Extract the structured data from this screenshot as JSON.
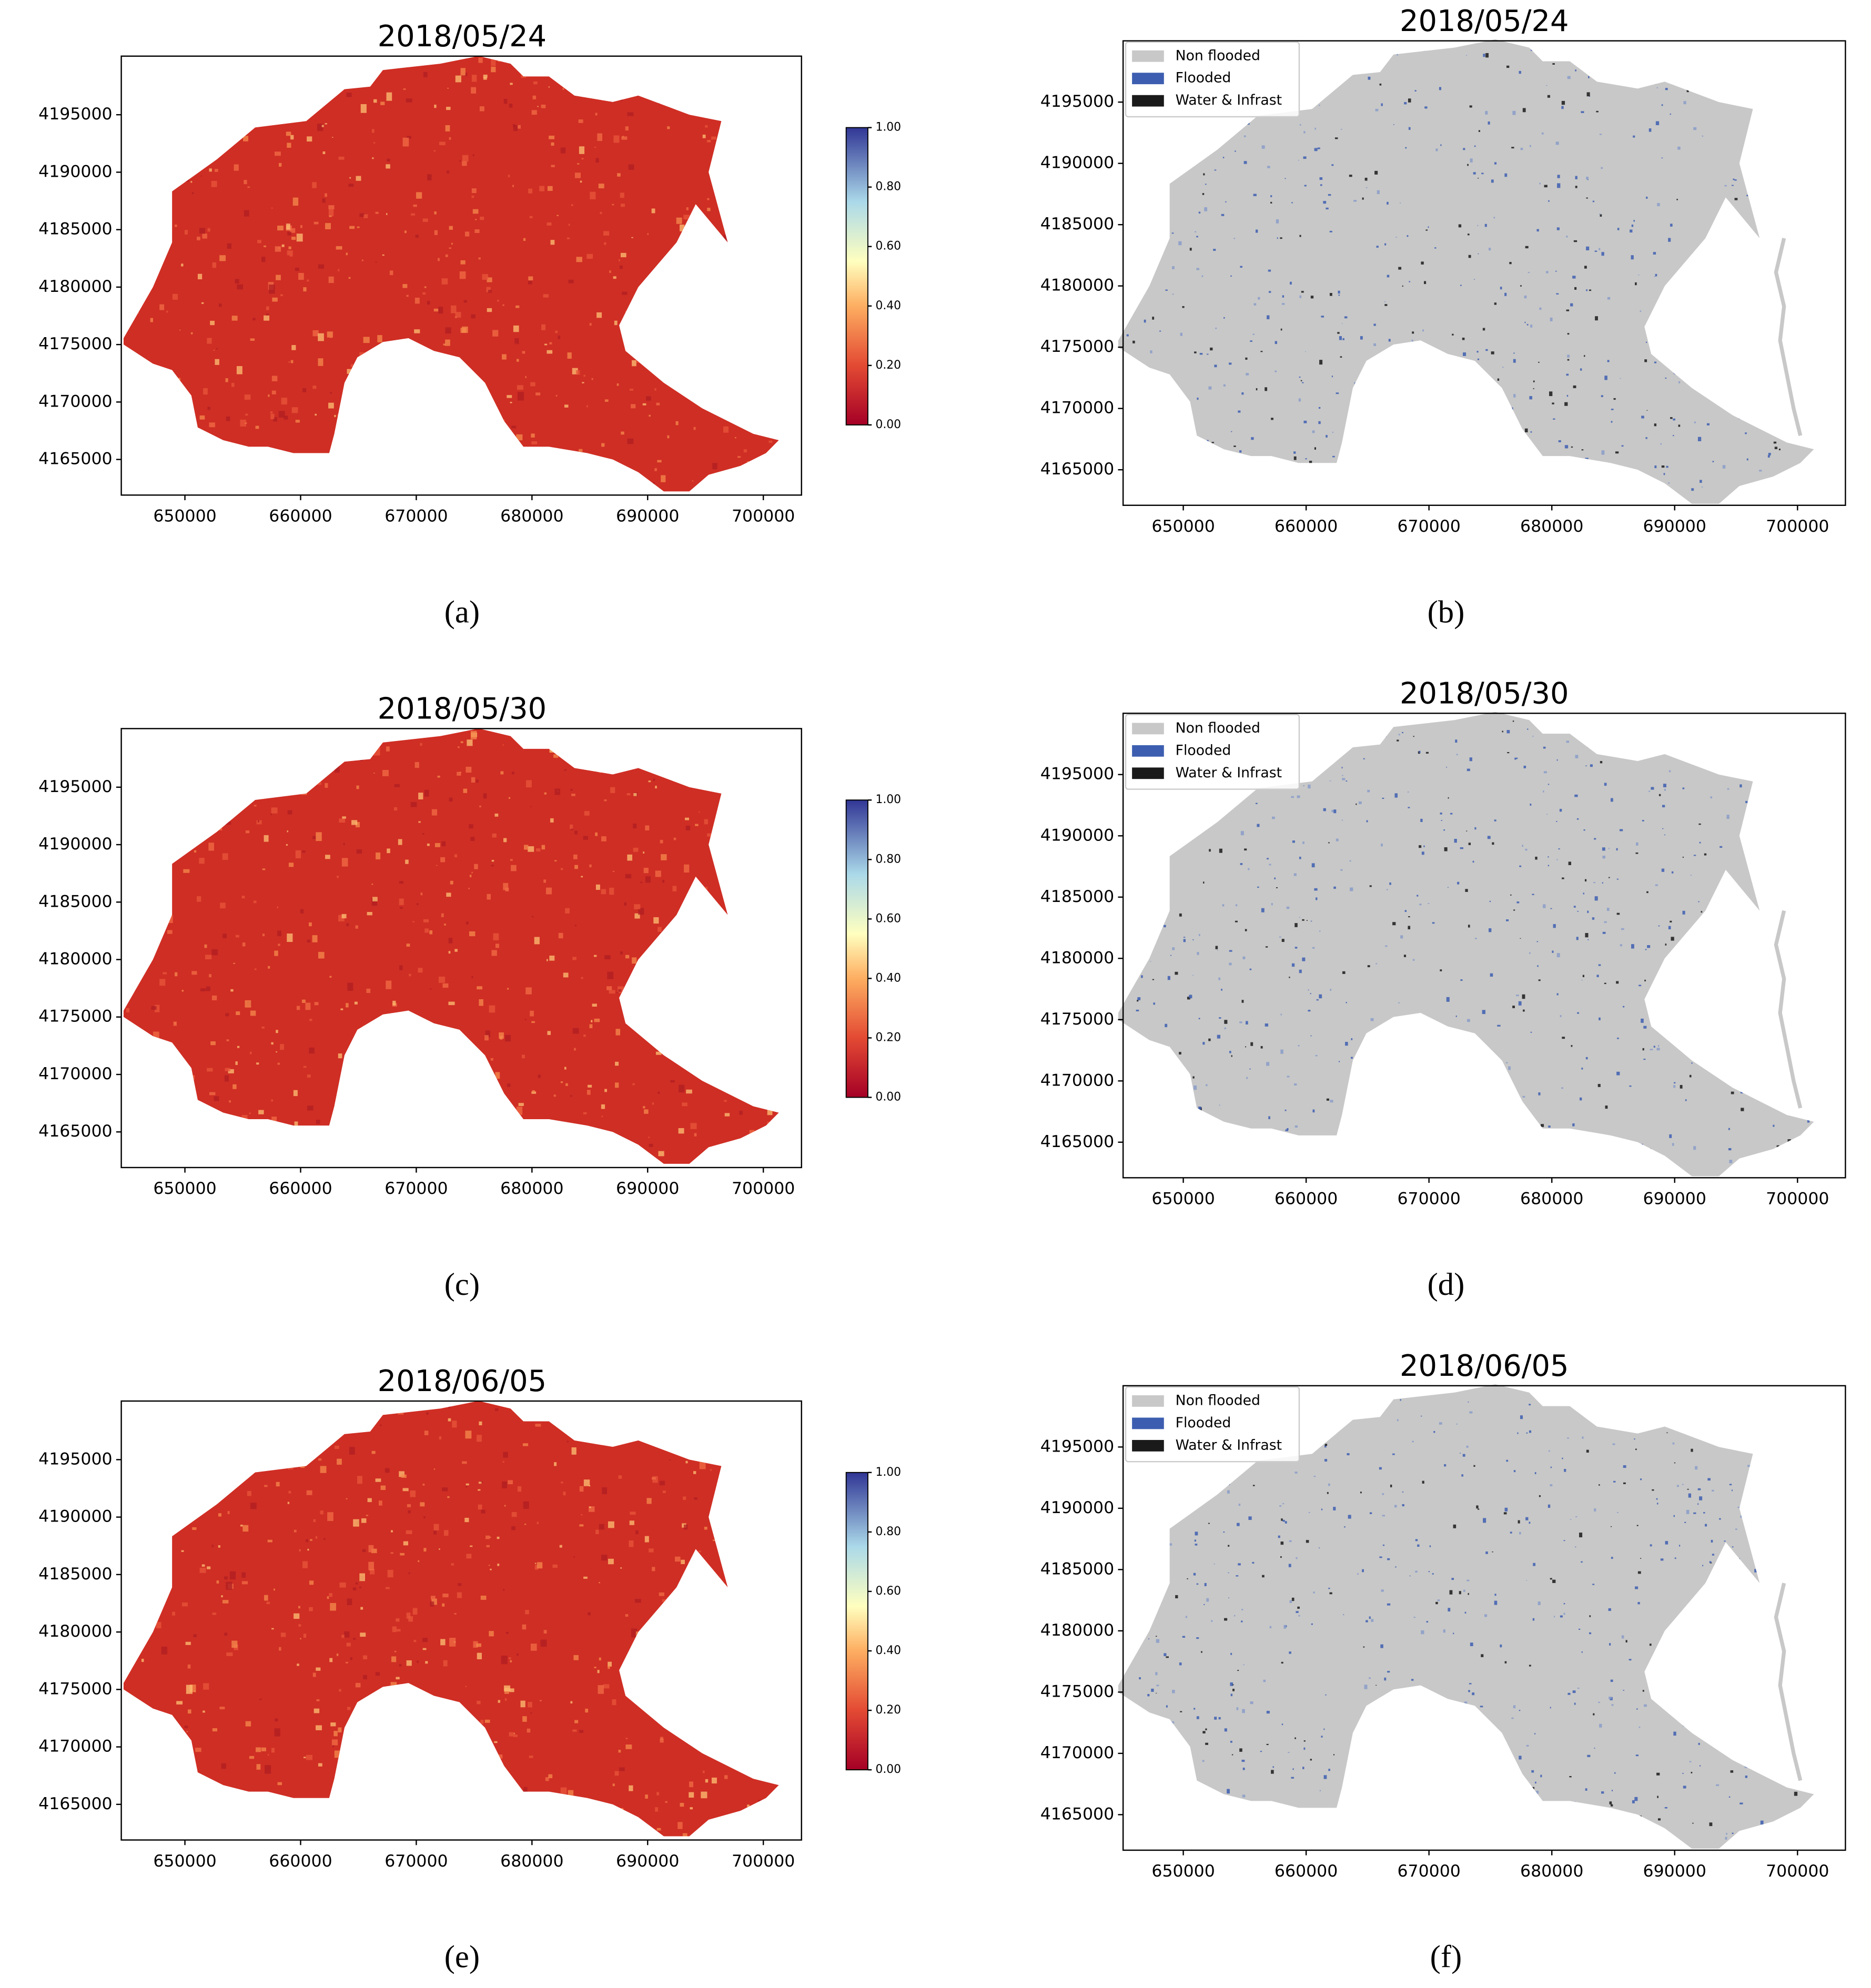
{
  "chart_data": [
    {
      "type": "raster",
      "title": "2018/05/24",
      "caption": "(a)",
      "xlim": [
        644500,
        703300
      ],
      "ylim": [
        4161900,
        4200100
      ],
      "xticks": [
        650000,
        660000,
        670000,
        680000,
        690000,
        700000
      ],
      "yticks": [
        4165000,
        4170000,
        4175000,
        4180000,
        4185000,
        4190000,
        4195000
      ],
      "colorbar": {
        "colormap": "RdYlBu",
        "clim": [
          0,
          1
        ],
        "ticks": [
          {
            "value": 0,
            "label": "0.00"
          },
          {
            "value": 0.2,
            "label": "0.20"
          },
          {
            "value": 0.4,
            "label": "0.40"
          },
          {
            "value": 0.6,
            "label": "0.60"
          },
          {
            "value": 0.8,
            "label": "0.80"
          },
          {
            "value": 1,
            "label": "1.00"
          }
        ]
      }
    },
    {
      "type": "classification",
      "title": "2018/05/24",
      "caption": "(b)",
      "xlim": [
        645100,
        703900
      ],
      "ylim": [
        4162100,
        4200000
      ],
      "xticks": [
        650000,
        660000,
        670000,
        680000,
        690000,
        700000
      ],
      "yticks": [
        4165000,
        4170000,
        4175000,
        4180000,
        4185000,
        4190000,
        4195000
      ],
      "legend_position": "upper left",
      "classes": [
        {
          "name": "Non flooded",
          "color": "#c8c8c8"
        },
        {
          "name": "Flooded",
          "color": "#3d5eb0"
        },
        {
          "name": "Water & Infrast",
          "color": "#1a1a1a"
        }
      ]
    },
    {
      "type": "raster",
      "title": "2018/05/30",
      "caption": "(c)",
      "xlim": [
        644500,
        703300
      ],
      "ylim": [
        4161900,
        4200100
      ],
      "xticks": [
        650000,
        660000,
        670000,
        680000,
        690000,
        700000
      ],
      "yticks": [
        4165000,
        4170000,
        4175000,
        4180000,
        4185000,
        4190000,
        4195000
      ],
      "colorbar": {
        "colormap": "RdYlBu",
        "clim": [
          0,
          1
        ],
        "ticks": [
          {
            "value": 0,
            "label": "0.00"
          },
          {
            "value": 0.2,
            "label": "0.20"
          },
          {
            "value": 0.4,
            "label": "0.40"
          },
          {
            "value": 0.6,
            "label": "0.60"
          },
          {
            "value": 0.8,
            "label": "0.80"
          },
          {
            "value": 1,
            "label": "1.00"
          }
        ]
      }
    },
    {
      "type": "classification",
      "title": "2018/05/30",
      "caption": "(d)",
      "xlim": [
        645100,
        703900
      ],
      "ylim": [
        4162100,
        4200000
      ],
      "xticks": [
        650000,
        660000,
        670000,
        680000,
        690000,
        700000
      ],
      "yticks": [
        4165000,
        4170000,
        4175000,
        4180000,
        4185000,
        4190000,
        4195000
      ],
      "legend_position": "upper left",
      "classes": [
        {
          "name": "Non flooded",
          "color": "#c8c8c8"
        },
        {
          "name": "Flooded",
          "color": "#3d5eb0"
        },
        {
          "name": "Water & Infrast",
          "color": "#1a1a1a"
        }
      ]
    },
    {
      "type": "raster",
      "title": "2018/06/05",
      "caption": "(e)",
      "xlim": [
        644500,
        703300
      ],
      "ylim": [
        4161900,
        4200100
      ],
      "xticks": [
        650000,
        660000,
        670000,
        680000,
        690000,
        700000
      ],
      "yticks": [
        4165000,
        4170000,
        4175000,
        4180000,
        4185000,
        4190000,
        4195000
      ],
      "colorbar": {
        "colormap": "RdYlBu",
        "clim": [
          0,
          1
        ],
        "ticks": [
          {
            "value": 0,
            "label": "0.00"
          },
          {
            "value": 0.2,
            "label": "0.20"
          },
          {
            "value": 0.4,
            "label": "0.40"
          },
          {
            "value": 0.6,
            "label": "0.60"
          },
          {
            "value": 0.8,
            "label": "0.80"
          },
          {
            "value": 1,
            "label": "1.00"
          }
        ]
      }
    },
    {
      "type": "classification",
      "title": "2018/06/05",
      "caption": "(f)",
      "xlim": [
        645100,
        703900
      ],
      "ylim": [
        4162100,
        4200000
      ],
      "xticks": [
        650000,
        660000,
        670000,
        680000,
        690000,
        700000
      ],
      "yticks": [
        4165000,
        4170000,
        4175000,
        4180000,
        4185000,
        4190000,
        4195000
      ],
      "legend_position": "upper left",
      "classes": [
        {
          "name": "Non flooded",
          "color": "#c8c8c8"
        },
        {
          "name": "Flooded",
          "color": "#3d5eb0"
        },
        {
          "name": "Water & Infrast",
          "color": "#1a1a1a"
        }
      ]
    }
  ]
}
